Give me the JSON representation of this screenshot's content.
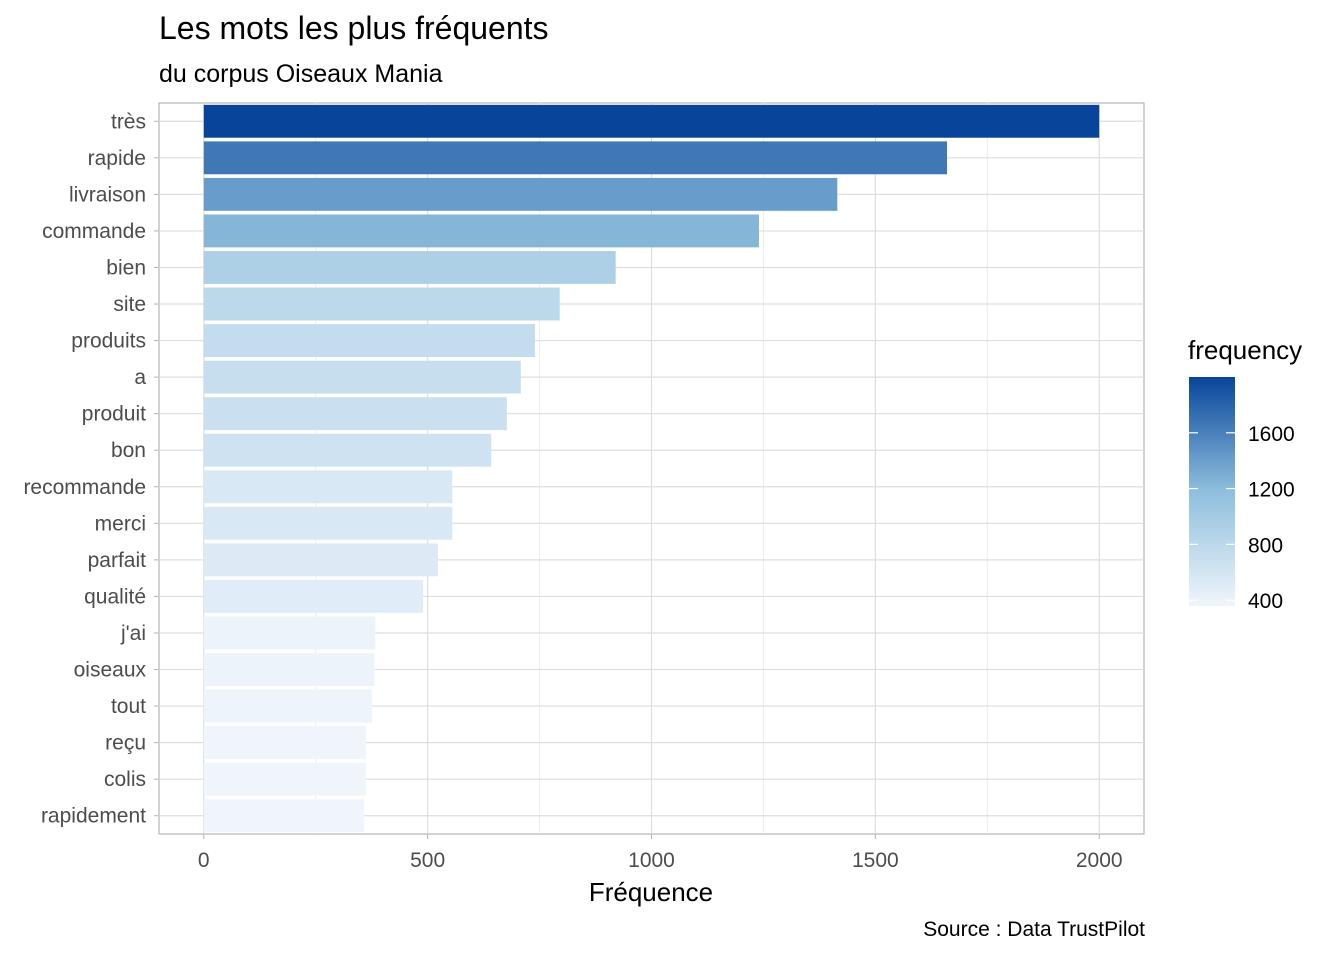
{
  "chart_data": {
    "type": "bar",
    "orientation": "horizontal",
    "title": "Les mots les plus fréquents",
    "subtitle": "du corpus Oiseaux Mania",
    "caption": "Source : Data TrustPilot",
    "xlabel": "Fréquence",
    "ylabel": "",
    "xlim": [
      -100,
      2100
    ],
    "x_ticks": [
      0,
      500,
      1000,
      1500,
      2000
    ],
    "grid": true,
    "categories": [
      "très",
      "rapide",
      "livraison",
      "commande",
      "bien",
      "site",
      "produits",
      "a",
      "produit",
      "bon",
      "recommande",
      "merci",
      "parfait",
      "qualité",
      "j'ai",
      "oiseaux",
      "tout",
      "reçu",
      "colis",
      "rapidement"
    ],
    "values": [
      2000,
      1660,
      1415,
      1240,
      920,
      795,
      740,
      708,
      677,
      642,
      555,
      555,
      523,
      490,
      383,
      381,
      376,
      362,
      362,
      358
    ],
    "legend": {
      "title": "frequency",
      "position": "right",
      "range": [
        358,
        2000
      ],
      "ticks": [
        400,
        800,
        1200,
        1600
      ],
      "color_low": "#f0f5fc",
      "color_mid": "#8fbfdd",
      "color_high": "#08459a"
    }
  }
}
